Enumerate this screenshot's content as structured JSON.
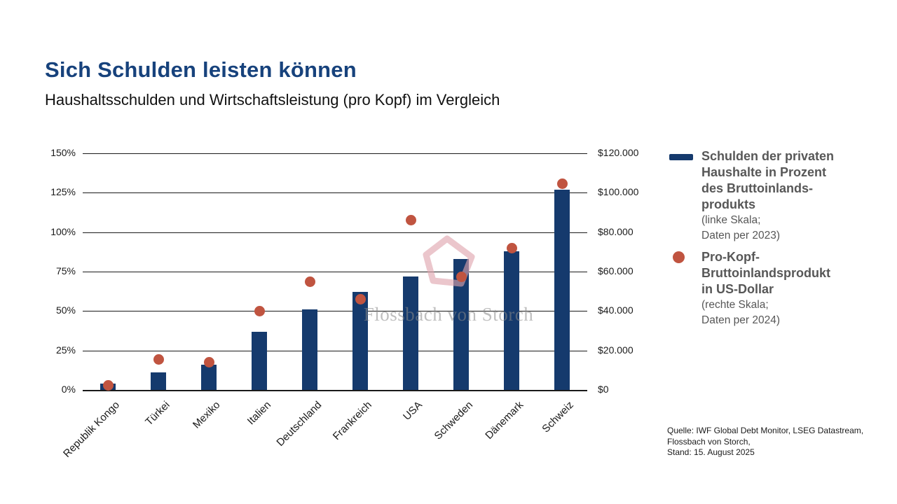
{
  "header": {
    "title": "Sich Schulden leisten können",
    "subtitle": "Haushaltsschulden und Wirtschaftsleistung (pro Kopf) im Vergleich"
  },
  "legend": {
    "items": [
      {
        "swatch": "navy-bar-swatch",
        "bold_lines": [
          "Schulden der privaten",
          "Haushalte in Prozent",
          "des Bruttoinlands-",
          "produkts"
        ],
        "normal_lines": [
          "(linke Skala;",
          "Daten per 2023)"
        ]
      },
      {
        "swatch": "red-dot-swatch",
        "bold_lines": [
          "Pro-Kopf-",
          "Bruttoinlandsprodukt",
          "in US-Dollar"
        ],
        "normal_lines": [
          "(rechte Skala;",
          "Daten per 2024)"
        ]
      }
    ]
  },
  "source": {
    "lines": [
      "Quelle: IWF Global Debt Monitor, LSEG Datastream,",
      "Flossbach von Storch,",
      "Stand: 15. August 2025"
    ]
  },
  "colors": {
    "title_blue": "#17427C",
    "bar_navy": "#153A6D",
    "dot_red": "#C05440",
    "legend_gray": "#575757",
    "watermark_gray": "#8a8a8a",
    "watermark_pink": "#DFA3AC"
  },
  "chart_data": {
    "type": "bar",
    "title": "Sich Schulden leisten können",
    "subtitle": "Haushaltsschulden und Wirtschaftsleistung (pro Kopf) im Vergleich",
    "categories": [
      "Republik Kongo",
      "Türkei",
      "Mexiko",
      "Italien",
      "Deutschland",
      "Frankreich",
      "USA",
      "Schweden",
      "Dänemark",
      "Schweiz"
    ],
    "series": [
      {
        "name": "Schulden der privaten Haushalte in Prozent des Bruttoinlandsprodukts",
        "type": "bar",
        "axis": "left",
        "unit": "% des BIP",
        "values": [
          4,
          11,
          16,
          37,
          51,
          62,
          72,
          83,
          88,
          127
        ]
      },
      {
        "name": "Pro-Kopf-Bruttoinlandsprodukt in US-Dollar",
        "type": "scatter",
        "axis": "right",
        "unit": "USD",
        "values": [
          2500,
          15500,
          14000,
          40000,
          55000,
          46000,
          86000,
          57500,
          72000,
          104500
        ]
      }
    ],
    "left_axis": {
      "min": 0,
      "max": 150,
      "ticks": [
        "150%",
        "125%",
        "100%",
        "75%",
        "50%",
        "25%",
        "0%"
      ]
    },
    "right_axis": {
      "min": 0,
      "max": 120000,
      "ticks": [
        "$120.000",
        "$100.000",
        "$80.000",
        "$60.000",
        "$40.000",
        "$20.000",
        "$0"
      ]
    },
    "grid": true,
    "legend_position": "right",
    "watermark": "Flossbach von Storch"
  }
}
